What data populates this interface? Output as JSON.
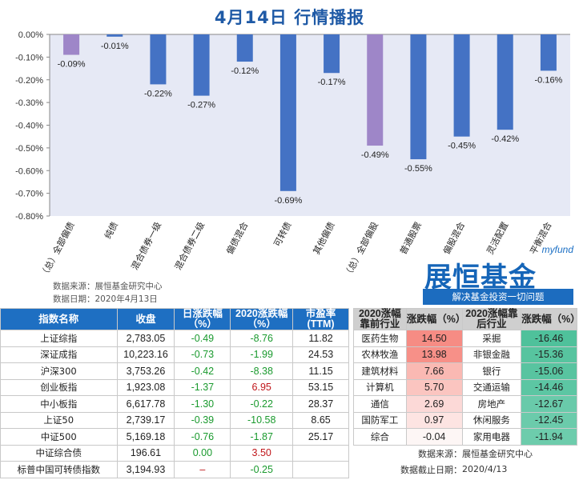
{
  "title": "4月14日  行情播报",
  "chart_data": {
    "type": "bar",
    "categories": [
      "（总）全部偏债",
      "纯债",
      "混合债券一级",
      "混合债券二级",
      "偏债混合",
      "可转债",
      "其他偏债",
      "（总）全部偏股",
      "普通股票",
      "偏股混合",
      "灵活配置",
      "平衡混合"
    ],
    "values": [
      -0.09,
      -0.01,
      -0.22,
      -0.27,
      -0.12,
      -0.69,
      -0.17,
      -0.49,
      -0.55,
      -0.45,
      -0.42,
      -0.16
    ],
    "data_labels": [
      "-0.09%",
      "-0.01%",
      "-0.22%",
      "-0.27%",
      "-0.12%",
      "-0.69%",
      "-0.17%",
      "-0.49%",
      "-0.55%",
      "-0.45%",
      "-0.42%",
      "-0.16%"
    ],
    "highlight_indices": [
      0,
      7
    ],
    "ylim": [
      -0.8,
      0.0
    ],
    "ticks": [
      "0.00%",
      "-0.10%",
      "-0.20%",
      "-0.30%",
      "-0.40%",
      "-0.50%",
      "-0.60%",
      "-0.70%",
      "-0.80%"
    ],
    "colors": {
      "bar": "#4472c4",
      "highlight": "#9e86c8",
      "plot_bg": "#e6e9f5"
    }
  },
  "source": {
    "line1": "数据来源：展恒基金研究中心",
    "line2": "数据日期：2020年4月13日"
  },
  "logo": {
    "myfund": "myfund",
    "name": "展恒基金",
    "slogan": "解决基金投资一切问题"
  },
  "index_table": {
    "headers": [
      "指数名称",
      "收盘",
      "日涨跌幅（%）",
      "2020涨跌幅（%）",
      "市盈率(TTM)"
    ],
    "rows": [
      {
        "name": "上证综指",
        "close": "2,783.05",
        "day": "-0.49",
        "ytd": "-8.76",
        "pe": "11.82",
        "ytd_pos": false
      },
      {
        "name": "深证成指",
        "close": "10,223.16",
        "day": "-0.73",
        "ytd": "-1.99",
        "pe": "24.53",
        "ytd_pos": false
      },
      {
        "name": "沪深300",
        "close": "3,753.26",
        "day": "-0.42",
        "ytd": "-8.38",
        "pe": "11.15",
        "ytd_pos": false
      },
      {
        "name": "创业板指",
        "close": "1,923.08",
        "day": "-1.37",
        "ytd": "6.95",
        "pe": "53.15",
        "ytd_pos": true
      },
      {
        "name": "中小板指",
        "close": "6,617.78",
        "day": "-1.30",
        "ytd": "-0.22",
        "pe": "28.37",
        "ytd_pos": false
      },
      {
        "name": "上证50",
        "close": "2,739.17",
        "day": "-0.39",
        "ytd": "-10.58",
        "pe": "8.65",
        "ytd_pos": false
      },
      {
        "name": "中证500",
        "close": "5,169.18",
        "day": "-0.76",
        "ytd": "-1.87",
        "pe": "25.17",
        "ytd_pos": false
      },
      {
        "name": "中证综合债",
        "close": "196.61",
        "day": "0.00",
        "ytd": "3.50",
        "pe": "",
        "ytd_pos": true
      },
      {
        "name": "标普中国可转债指数",
        "close": "3,194.93",
        "day": "–",
        "ytd": "-0.25",
        "pe": "",
        "ytd_pos": false
      }
    ]
  },
  "sector_table": {
    "headers": [
      "2020涨幅靠前行业",
      "涨跌幅（%）",
      "2020涨幅靠后行业",
      "涨跌幅（%）"
    ],
    "rows": [
      {
        "top": "医药生物",
        "top_val": "14.50",
        "bottom": "采掘",
        "bottom_val": "-16.46"
      },
      {
        "top": "农林牧渔",
        "top_val": "13.98",
        "bottom": "非银金融",
        "bottom_val": "-15.36"
      },
      {
        "top": "建筑材料",
        "top_val": "7.66",
        "bottom": "银行",
        "bottom_val": "-15.06"
      },
      {
        "top": "计算机",
        "top_val": "5.70",
        "bottom": "交通运输",
        "bottom_val": "-14.46"
      },
      {
        "top": "通信",
        "top_val": "2.69",
        "bottom": "房地产",
        "bottom_val": "-12.67"
      },
      {
        "top": "国防军工",
        "top_val": "0.97",
        "bottom": "休闲服务",
        "bottom_val": "-12.45"
      },
      {
        "top": "综合",
        "top_val": "-0.04",
        "bottom": "家用电器",
        "bottom_val": "-11.94"
      }
    ],
    "note": {
      "source_label": "数据来源：",
      "source_value": "展恒基金研究中心",
      "date_label": "数据截止日期：",
      "date_value": "2020/4/13"
    }
  }
}
